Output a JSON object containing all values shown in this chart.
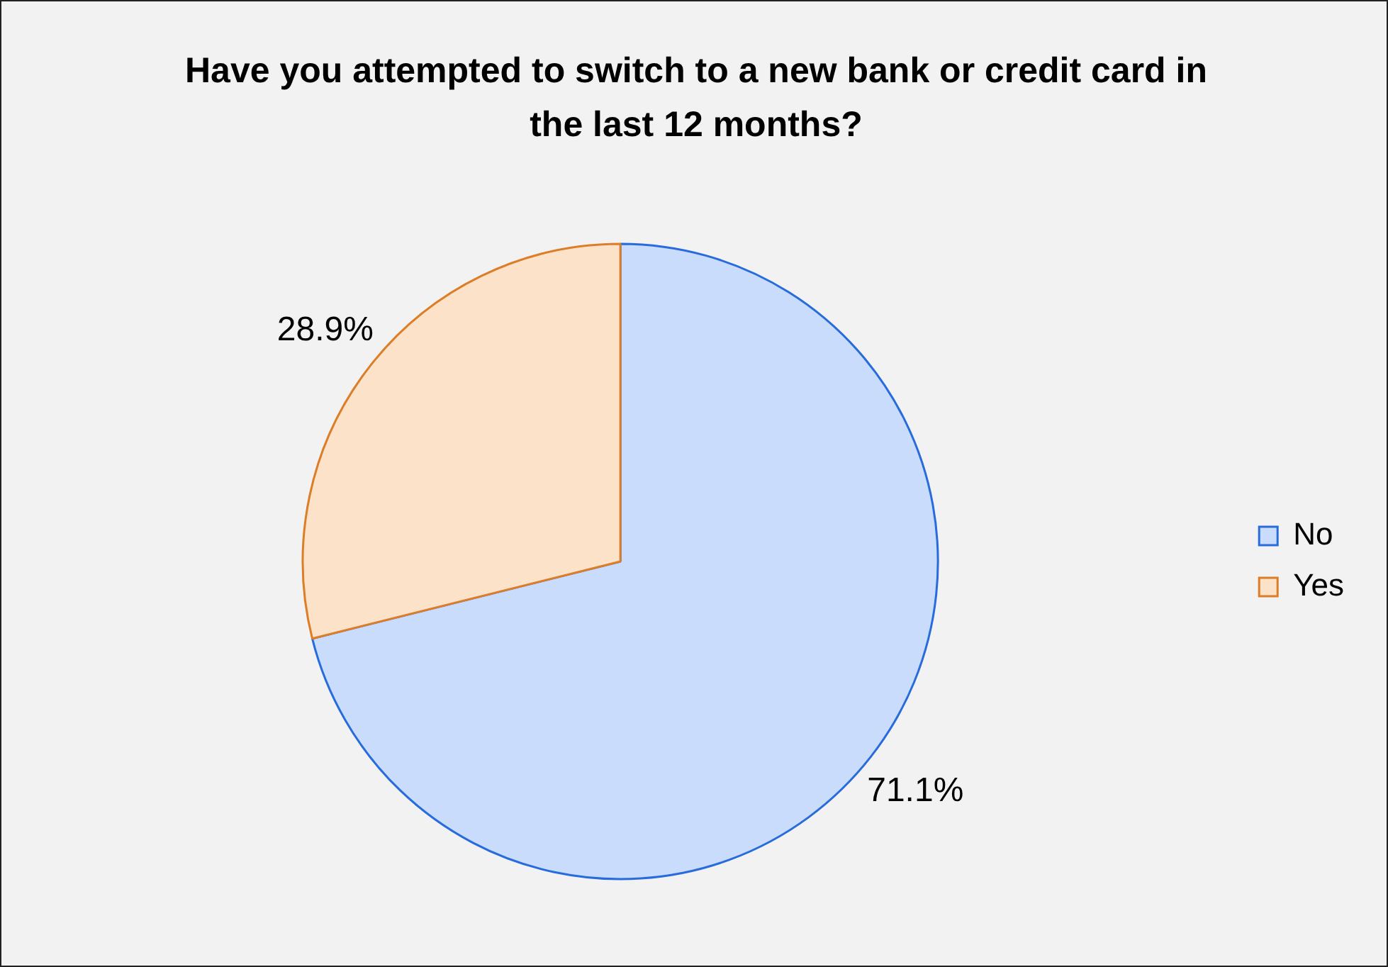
{
  "chart_data": {
    "type": "pie",
    "title": "Have you attempted to switch to a new bank or credit card in the last 12 months?",
    "categories": [
      "No",
      "Yes"
    ],
    "values": [
      71.1,
      28.9
    ],
    "value_labels": [
      "71.1%",
      "28.9%"
    ],
    "colors": [
      "#c9dcfc",
      "#fde2ca"
    ],
    "legend": "right"
  }
}
